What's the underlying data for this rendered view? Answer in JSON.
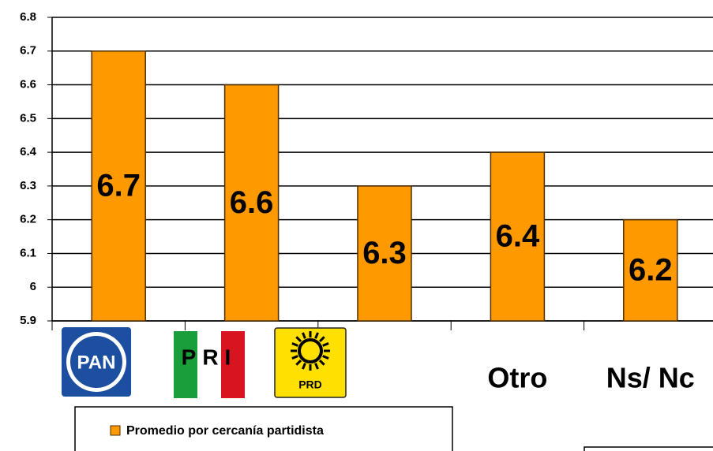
{
  "chart_data": {
    "type": "bar",
    "categories": [
      "PAN",
      "PRI",
      "PRD",
      "Otro",
      "Ns/ Nc"
    ],
    "series": [
      {
        "name": "Promedio por cercanía partidista",
        "color": "#FF9900",
        "values": [
          6.7,
          6.6,
          6.3,
          6.4,
          6.2
        ]
      }
    ],
    "ylim": [
      5.9,
      6.8
    ],
    "yticks": [
      5.9,
      6,
      6.1,
      6.2,
      6.3,
      6.4,
      6.5,
      6.6,
      6.7,
      6.8
    ],
    "grid": true
  }
}
